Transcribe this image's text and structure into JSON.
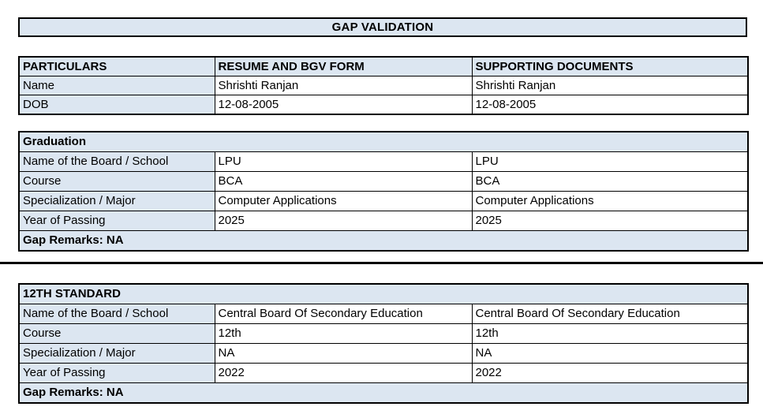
{
  "page": {
    "title": "GAP VALIDATION"
  },
  "colors": {
    "header_bg": "#dce6f1",
    "cell_bg": "#ffffff",
    "border": "#000000",
    "text": "#000000"
  },
  "personal_table": {
    "headers": [
      "PARTICULARS",
      "RESUME AND BGV FORM",
      "SUPPORTING DOCUMENTS"
    ],
    "rows": [
      {
        "label": "Name",
        "resume": "Shrishti Ranjan",
        "supporting": "Shrishti Ranjan"
      },
      {
        "label": "DOB",
        "resume": "12-08-2005",
        "supporting": "12-08-2005"
      }
    ]
  },
  "graduation_table": {
    "title": "Graduation",
    "rows": [
      {
        "label": "Name of the Board / School",
        "resume": "LPU",
        "supporting": "LPU"
      },
      {
        "label": "Course",
        "resume": "BCA",
        "supporting": "BCA"
      },
      {
        "label": "Specialization / Major",
        "resume": "Computer Applications",
        "supporting": "Computer Applications"
      },
      {
        "label": "Year of Passing",
        "resume": "2025",
        "supporting": "2025"
      }
    ],
    "gap_remarks": "Gap Remarks: NA"
  },
  "twelfth_table": {
    "title": "12TH STANDARD",
    "rows": [
      {
        "label": "Name of the Board / School",
        "resume": "Central Board Of Secondary Education",
        "supporting": "Central Board Of Secondary Education"
      },
      {
        "label": "Course",
        "resume": "12th",
        "supporting": "12th"
      },
      {
        "label": "Specialization / Major",
        "resume": "NA",
        "supporting": "NA"
      },
      {
        "label": "Year of Passing",
        "resume": "2022",
        "supporting": "2022"
      }
    ],
    "gap_remarks": "Gap Remarks: NA"
  }
}
